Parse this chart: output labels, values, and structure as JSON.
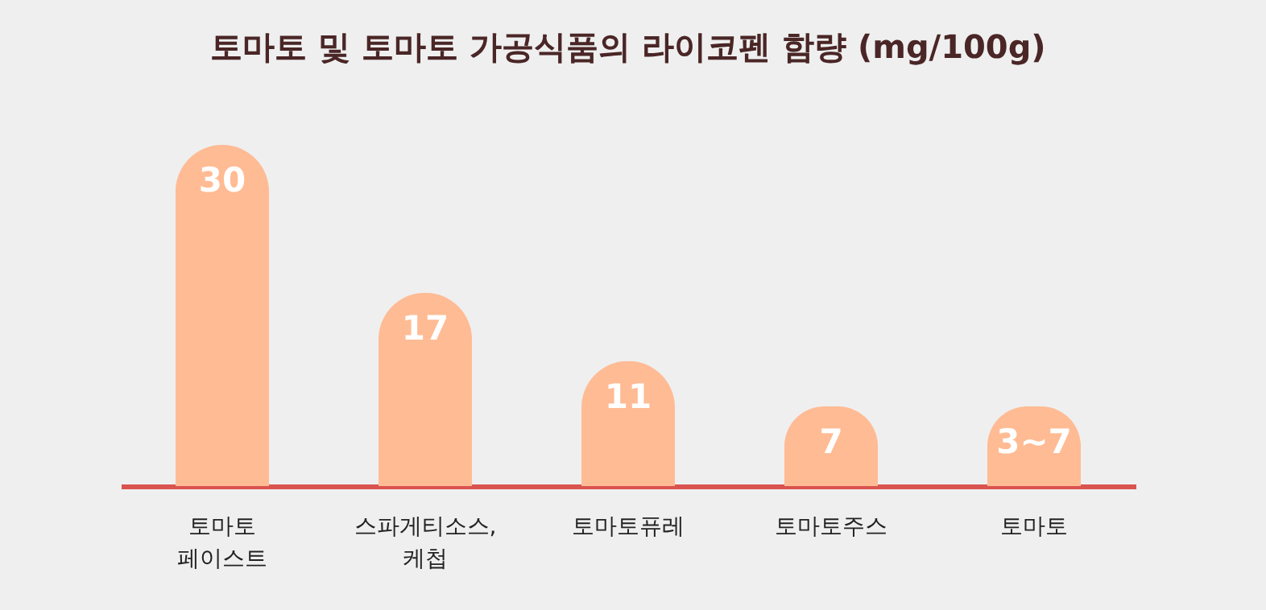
{
  "chart_data": {
    "type": "bar",
    "title": "토마토 및 토마토 가공식품의 라이코펜 함량 (mg/100g)",
    "categories": [
      "토마토 페이스트",
      "스파게티소스, 케첩",
      "토마토퓨레",
      "토마토주스",
      "토마토"
    ],
    "values": [
      30,
      17,
      11,
      7,
      7
    ],
    "value_labels": [
      "30",
      "17",
      "11",
      "7",
      "3~7"
    ],
    "color": "#ffbb94"
  }
}
